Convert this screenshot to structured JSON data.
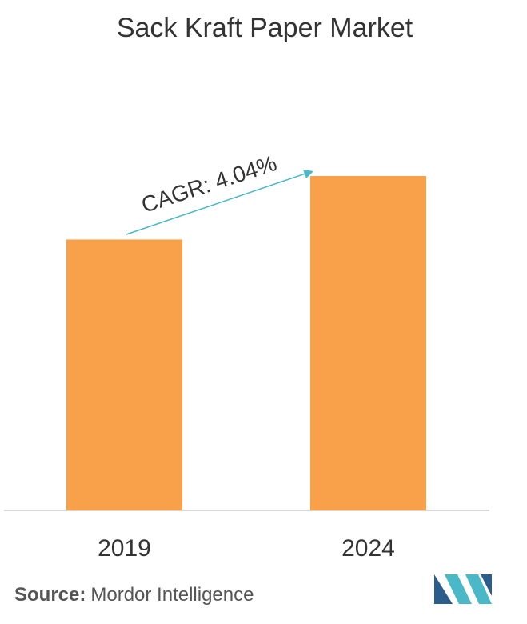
{
  "chart_data": {
    "type": "bar",
    "title": "Sack Kraft Paper Market",
    "categories": [
      "2019",
      "2024"
    ],
    "values": [
      81,
      100
    ],
    "color": "#f9a04a",
    "ylim": [
      0,
      100
    ],
    "annotation": "CAGR: 4.04%",
    "annotation_color": "#4bb8c8",
    "source_label": "Source:",
    "source": "Mordor Intelligence"
  }
}
